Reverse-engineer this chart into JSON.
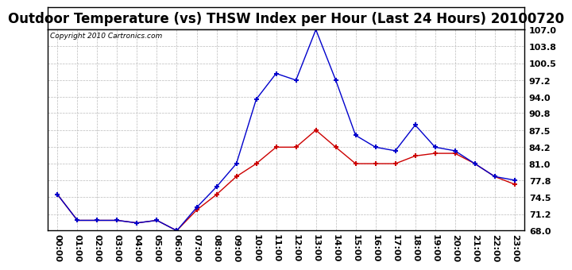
{
  "title": "Outdoor Temperature (vs) THSW Index per Hour (Last 24 Hours) 20100720",
  "copyright": "Copyright 2010 Cartronics.com",
  "hours": [
    "00:00",
    "01:00",
    "02:00",
    "03:00",
    "04:00",
    "05:00",
    "06:00",
    "07:00",
    "08:00",
    "09:00",
    "10:00",
    "11:00",
    "12:00",
    "13:00",
    "14:00",
    "15:00",
    "16:00",
    "17:00",
    "18:00",
    "19:00",
    "20:00",
    "21:00",
    "22:00",
    "23:00"
  ],
  "temp": [
    75.0,
    70.0,
    70.0,
    70.0,
    69.5,
    70.0,
    68.0,
    72.0,
    75.0,
    78.5,
    81.0,
    84.2,
    84.2,
    87.5,
    84.2,
    81.0,
    81.0,
    81.0,
    82.5,
    83.0,
    83.0,
    81.0,
    78.5,
    77.0
  ],
  "thsw": [
    75.0,
    70.0,
    70.0,
    70.0,
    69.5,
    70.0,
    68.0,
    72.5,
    76.5,
    81.0,
    93.5,
    98.5,
    97.2,
    107.0,
    97.2,
    86.5,
    84.2,
    83.5,
    88.5,
    84.2,
    83.5,
    81.0,
    78.5,
    77.8
  ],
  "temp_color": "#cc0000",
  "thsw_color": "#0000cc",
  "bg_color": "#ffffff",
  "grid_color": "#bbbbbb",
  "ytick_labels": [
    "68.0",
    "71.2",
    "74.5",
    "77.8",
    "81.0",
    "84.2",
    "87.5",
    "90.8",
    "94.0",
    "97.2",
    "100.5",
    "103.8",
    "107.0"
  ],
  "ymin": 68.0,
  "ymax": 107.0,
  "title_fontsize": 12,
  "axis_fontsize": 8,
  "copyright_fontsize": 6.5
}
